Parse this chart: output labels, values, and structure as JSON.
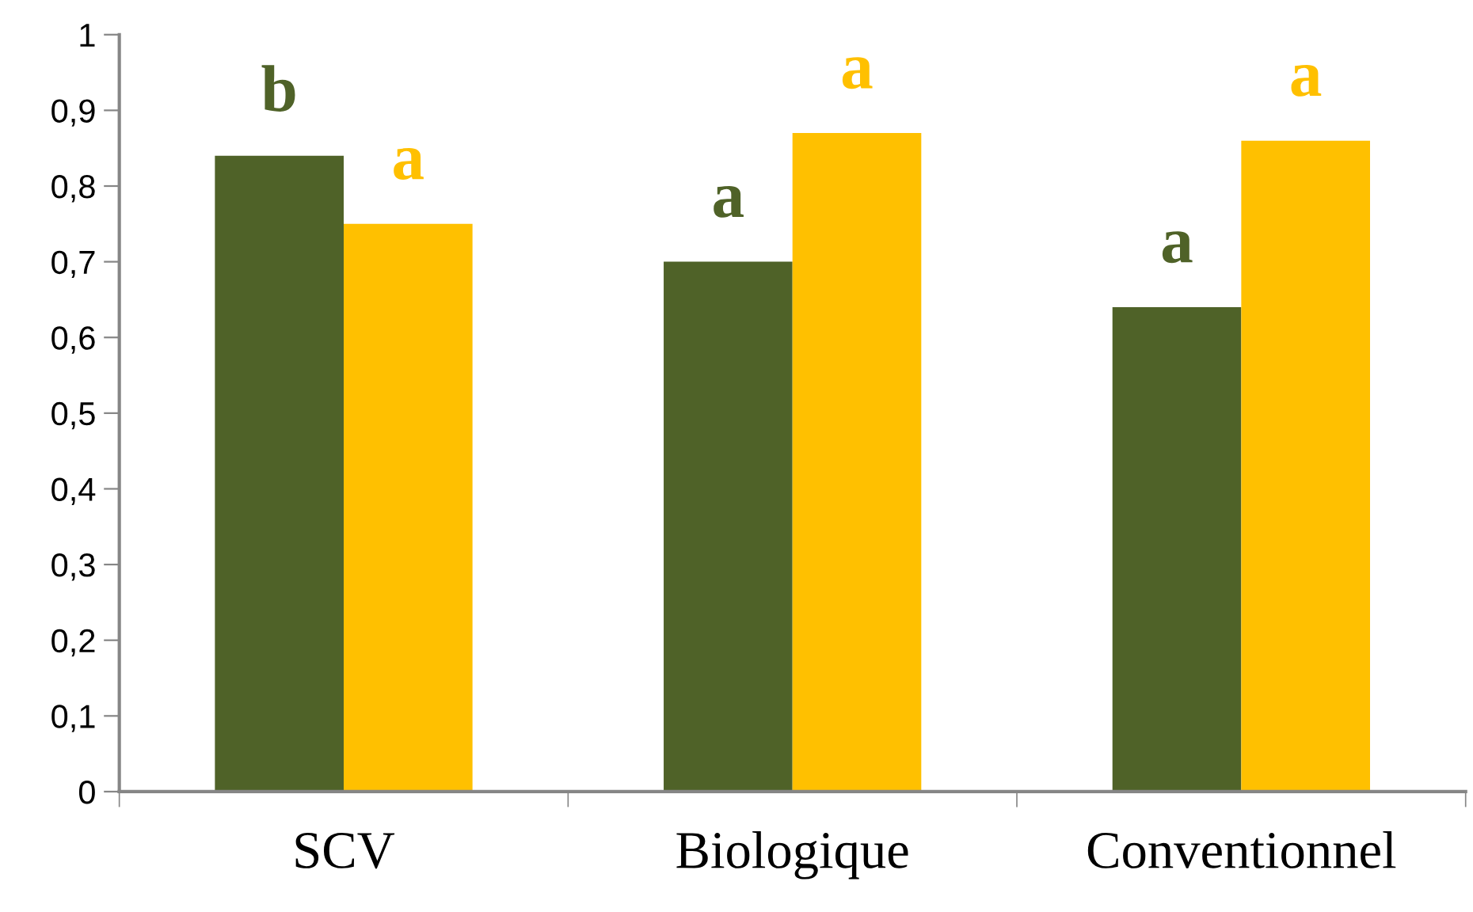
{
  "chart_data": {
    "type": "bar",
    "categories": [
      "SCV",
      "Biologique",
      "Conventionnel"
    ],
    "series": [
      {
        "color": "#4f6228",
        "values": [
          0.84,
          0.7,
          0.64
        ]
      },
      {
        "color": "#ffc000",
        "values": [
          0.75,
          0.87,
          0.86
        ]
      }
    ],
    "ylim": [
      0,
      1
    ],
    "yticks": [
      0,
      {
        "value": 0.1,
        "label": "0,1"
      },
      {
        "value": 0.2,
        "label": "0,2"
      },
      {
        "value": 0.3,
        "label": "0,3"
      },
      {
        "value": 0.4,
        "label": "0,4"
      },
      {
        "value": 0.5,
        "label": "0,5"
      },
      {
        "value": 0.6,
        "label": "0,6"
      },
      {
        "value": 0.7,
        "label": "0,7"
      },
      {
        "value": 0.8,
        "label": "0,8"
      },
      {
        "value": 0.9,
        "label": "0,9"
      },
      1
    ],
    "grid": false,
    "annotations": [
      {
        "text": "b",
        "x": "SCV",
        "y": 0.84
      },
      {
        "text": "a",
        "x": "SCV",
        "y": 0.75
      },
      {
        "text": "a",
        "x": "Biologique",
        "y": 0.7
      },
      {
        "text": "a",
        "x": "Biologique",
        "y": 0.87
      },
      {
        "text": "a",
        "x": "Conventionnel",
        "y": 0.64
      },
      {
        "text": "a",
        "x": "Conventionnel",
        "y": 0.86
      }
    ]
  }
}
